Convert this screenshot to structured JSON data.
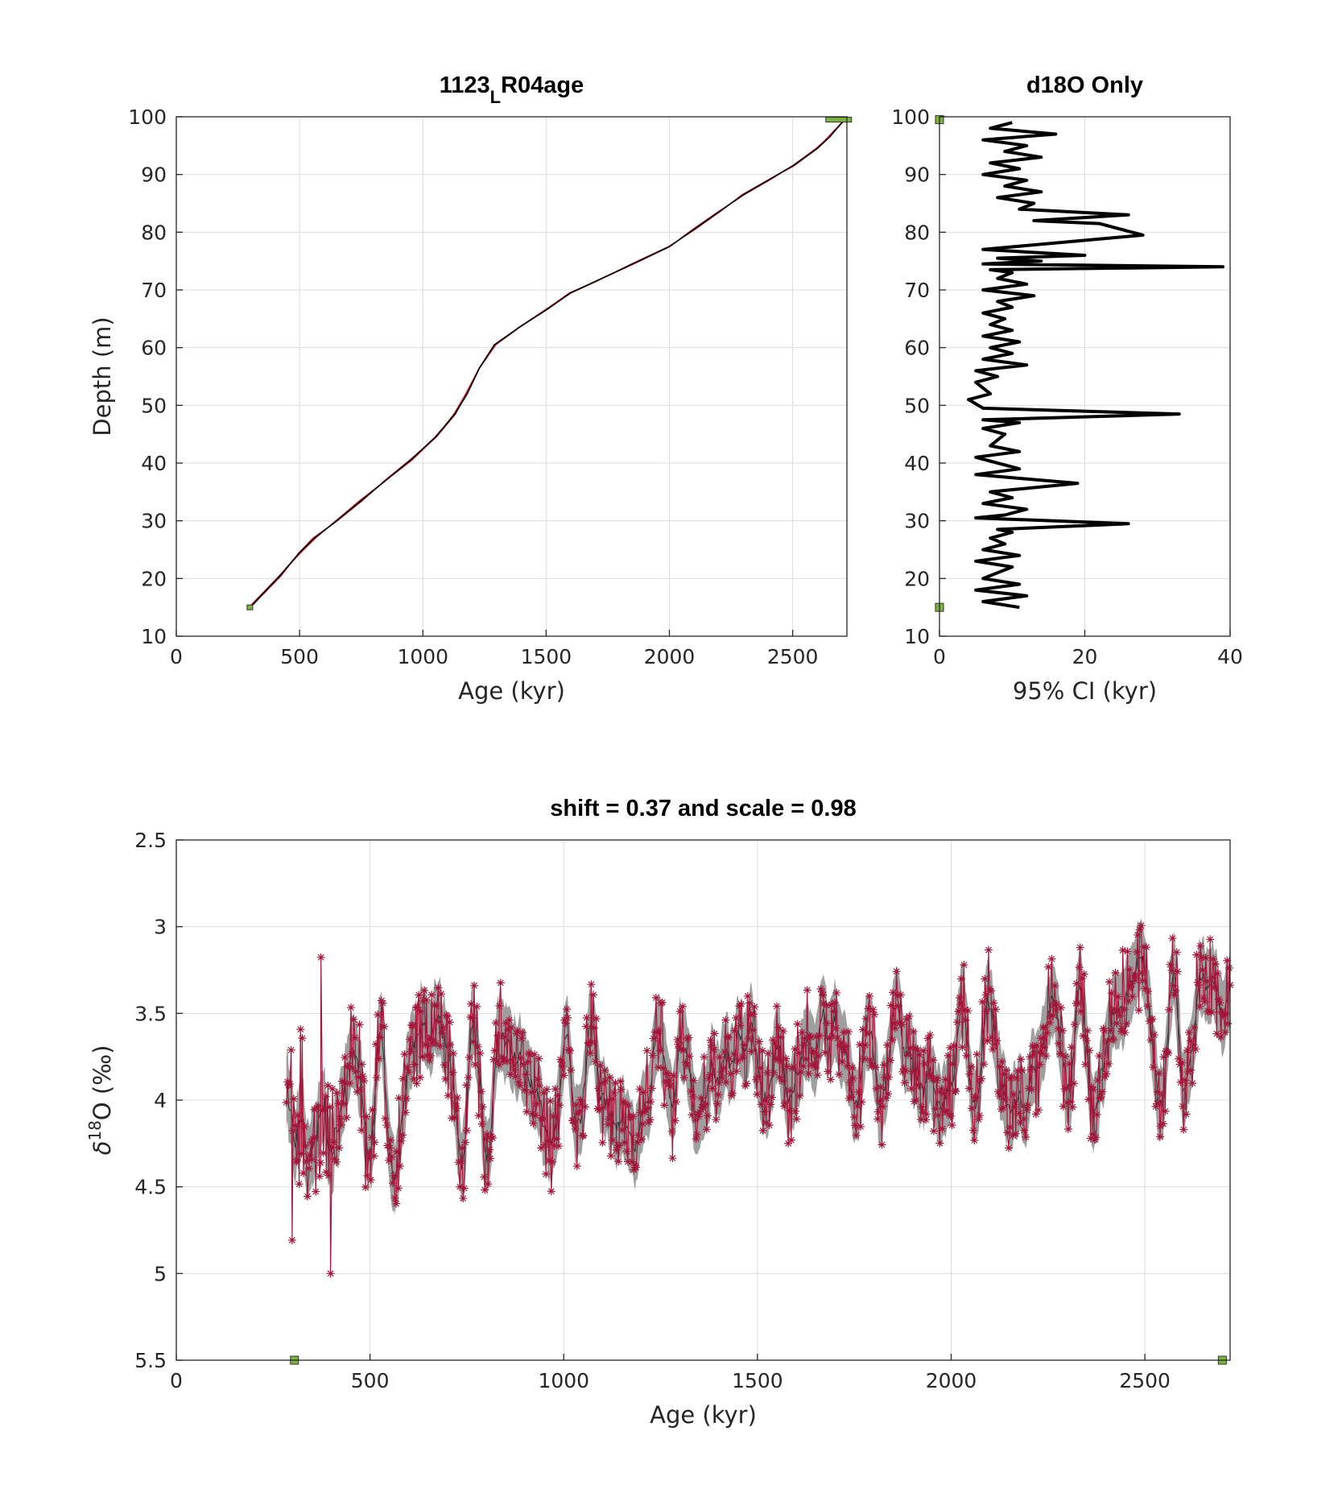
{
  "chart_data": [
    {
      "id": "age-depth",
      "type": "line",
      "title_main": "1123",
      "title_sub": "L",
      "title_rest": "R04age",
      "xlabel": "Age (kyr)",
      "ylabel": "Depth (m)",
      "xlim": [
        0,
        2720
      ],
      "ylim": [
        10,
        100
      ],
      "xticks": [
        "0",
        "500",
        "1000",
        "1500",
        "2000",
        "2500"
      ],
      "yticks": [
        "10",
        "20",
        "30",
        "40",
        "50",
        "60",
        "70",
        "80",
        "90",
        "100"
      ],
      "grid": true,
      "colors": {
        "median": "#000000",
        "bounds": "#c0152a",
        "marker": "#7cb342"
      },
      "series": [
        {
          "x": [
            300,
            420,
            500,
            560,
            650,
            750,
            850,
            950,
            1050,
            1130,
            1180,
            1230,
            1290,
            1390,
            1500,
            1600,
            1700,
            1850,
            2000,
            2100,
            2200,
            2300,
            2400,
            2500,
            2600,
            2650,
            2720
          ],
          "y": [
            15,
            20.5,
            24.5,
            27,
            30,
            33.5,
            37,
            40.5,
            44.5,
            48.5,
            52,
            56.5,
            60.5,
            63.5,
            66.5,
            69.5,
            71.5,
            74.5,
            77.5,
            80.5,
            83.5,
            86.5,
            89,
            91.5,
            94.5,
            96.5,
            100
          ]
        }
      ],
      "markers": [
        {
          "x": [
            300
          ],
          "y": [
            15
          ]
        },
        {
          "x": [
            2680
          ],
          "y": [
            99.5
          ]
        }
      ]
    },
    {
      "id": "ci-width",
      "type": "line",
      "title": "d18O Only",
      "xlabel": "95% CI (kyr)",
      "ylabel": "",
      "xlim": [
        0,
        40
      ],
      "ylim": [
        10,
        100
      ],
      "xticks": [
        "0",
        "20",
        "40"
      ],
      "yticks": [
        "10",
        "20",
        "30",
        "40",
        "50",
        "60",
        "70",
        "80",
        "90",
        "100"
      ],
      "grid": true,
      "colors": {
        "line": "#000000",
        "marker": "#7cb342"
      },
      "series": [
        {
          "x": [
            11,
            6,
            12,
            5,
            11,
            6,
            8,
            10,
            5,
            11,
            6,
            9,
            7,
            10,
            8,
            26,
            5,
            9,
            12,
            6,
            10,
            7,
            19,
            5,
            11,
            5,
            11,
            7,
            8,
            9,
            6,
            11,
            6,
            33,
            6,
            4,
            7,
            5,
            8,
            5,
            12,
            6,
            10,
            7,
            11,
            6,
            10,
            7,
            9,
            6,
            10,
            8,
            13,
            6,
            12,
            8,
            10,
            7,
            39,
            6,
            14,
            8,
            20,
            6,
            28,
            22,
            13,
            26,
            11,
            13,
            8,
            14,
            9,
            12,
            6,
            11,
            7,
            14,
            9,
            12,
            6,
            16,
            7,
            10
          ],
          "y": [
            15,
            16,
            17,
            18,
            19,
            20,
            21,
            22,
            23,
            24,
            25,
            26,
            27,
            28,
            28.5,
            29.5,
            30.5,
            31,
            32,
            33,
            34,
            35,
            36.5,
            38,
            39,
            41,
            42,
            43,
            44,
            45,
            46,
            47,
            47.5,
            48.5,
            49.5,
            51,
            52,
            54,
            55,
            56,
            57,
            58,
            59,
            60,
            61,
            62,
            63,
            64,
            65,
            66,
            67,
            68,
            69,
            70,
            71,
            72,
            73,
            73.5,
            74,
            74.5,
            75,
            75.5,
            76,
            77,
            79.5,
            81.5,
            82,
            83,
            84,
            85,
            86,
            87,
            88,
            89,
            90,
            91,
            92,
            93,
            94,
            95,
            96,
            97,
            98,
            99
          ]
        }
      ],
      "markers": [
        {
          "x": [
            0
          ],
          "y": [
            15
          ]
        },
        {
          "x": [
            0
          ],
          "y": [
            99.5
          ]
        }
      ]
    },
    {
      "id": "d18o-stack",
      "type": "scatter",
      "title": "shift = 0.37 and scale = 0.98",
      "xlabel": "Age (kyr)",
      "ylabel_prefix": "δ",
      "ylabel_sup": "18",
      "ylabel_rest": "O (‰)",
      "xlim": [
        0,
        2720
      ],
      "ylim": [
        2.5,
        5.5
      ],
      "y_reversed": true,
      "xticks": [
        "0",
        "500",
        "1000",
        "1500",
        "2000",
        "2500"
      ],
      "yticks": [
        "2.5",
        "3",
        "3.5",
        "4",
        "4.5",
        "5",
        "5.5"
      ],
      "grid": true,
      "colors": {
        "band": "#9a9a9a",
        "median": "#2a2a2a",
        "points": "#a3163a",
        "marker": "#7cb342"
      },
      "point_count": 900,
      "seed": 7,
      "markers": [
        {
          "x": [
            305
          ],
          "y": [
            5.5
          ]
        },
        {
          "x": [
            2700
          ],
          "y": [
            5.5
          ]
        }
      ]
    }
  ]
}
